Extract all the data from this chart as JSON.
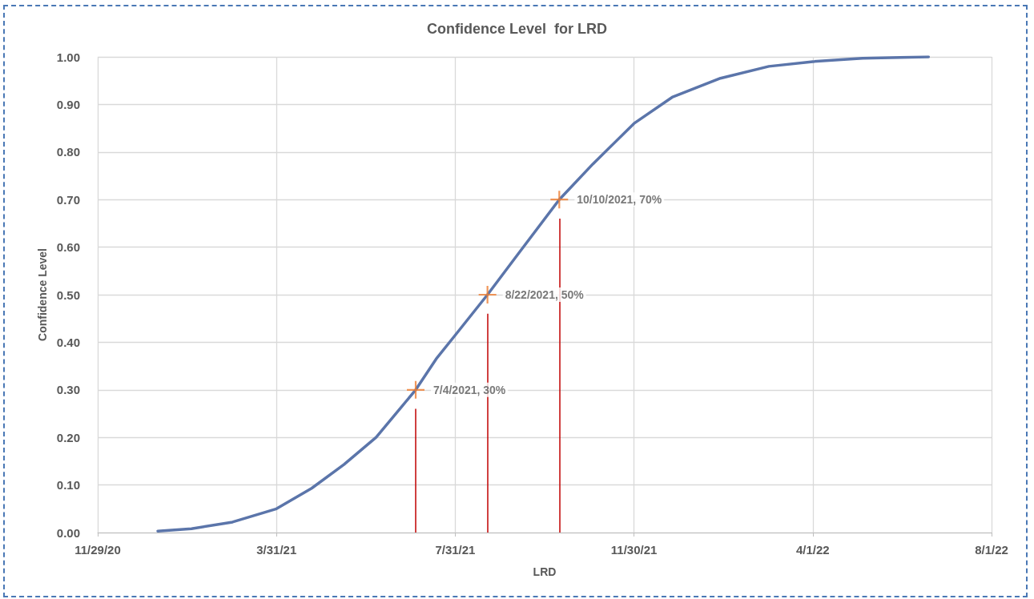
{
  "chart_data": {
    "type": "line",
    "title": "Confidence Level  for LRD",
    "xlabel": "LRD",
    "ylabel": "Confidence Level",
    "series": [
      {
        "color": "#5b75aa",
        "x": [
          "2021-01-09",
          "2021-02-01",
          "2021-03-01",
          "2021-03-31",
          "2021-04-24",
          "2021-05-16",
          "2021-06-07",
          "2021-07-04",
          "2021-07-18",
          "2021-07-31",
          "2021-08-22",
          "2021-09-13",
          "2021-10-10",
          "2021-11-02",
          "2021-11-30",
          "2021-12-26",
          "2022-01-28",
          "2022-03-02",
          "2022-04-01",
          "2022-05-05",
          "2022-06-19"
        ],
        "values": [
          0.003,
          0.008,
          0.022,
          0.05,
          0.093,
          0.143,
          0.2,
          0.3,
          0.365,
          0.415,
          0.5,
          0.59,
          0.7,
          0.775,
          0.86,
          0.915,
          0.955,
          0.98,
          0.99,
          0.997,
          1.0
        ]
      },
      {
        "type": "scatter",
        "color": "#ed7d31",
        "marker": "cross",
        "x": [
          "2021-07-04",
          "2021-08-22",
          "2021-10-10"
        ],
        "values": [
          0.3,
          0.5,
          0.7
        ],
        "value_labels": [
          "7/4/2021, 30%",
          "8/22/2021, 50%",
          "10/10/2021, 70%"
        ]
      }
    ],
    "ref_lines": [
      {
        "axis": "x",
        "value": "2021-07-04",
        "color": "#c00000"
      },
      {
        "axis": "x",
        "value": "2021-08-22",
        "color": "#c00000"
      },
      {
        "axis": "x",
        "value": "2021-10-10",
        "color": "#c00000"
      }
    ],
    "xlim": [
      "2020-11-29",
      "2022-08-01"
    ],
    "xticks": [
      {
        "value": "2020-11-29",
        "label": "11/29/20"
      },
      {
        "value": "2021-03-31",
        "label": "3/31/21"
      },
      {
        "value": "2021-07-31",
        "label": "7/31/21"
      },
      {
        "value": "2021-11-30",
        "label": "11/30/21"
      },
      {
        "value": "2022-04-01",
        "label": "4/1/22"
      },
      {
        "value": "2022-08-01",
        "label": "8/1/22"
      }
    ],
    "ylim": [
      0,
      1
    ],
    "yticks": [
      {
        "value": 0,
        "label": "0.00"
      },
      {
        "value": 0.1,
        "label": "0.10"
      },
      {
        "value": 0.2,
        "label": "0.20"
      },
      {
        "value": 0.3,
        "label": "0.30"
      },
      {
        "value": 0.4,
        "label": "0.40"
      },
      {
        "value": 0.5,
        "label": "0.50"
      },
      {
        "value": 0.6,
        "label": "0.60"
      },
      {
        "value": 0.7,
        "label": "0.70"
      },
      {
        "value": 0.8,
        "label": "0.80"
      },
      {
        "value": 0.9,
        "label": "0.90"
      },
      {
        "value": 1,
        "label": "1.00"
      }
    ],
    "grid": true,
    "line_style": "solid"
  }
}
